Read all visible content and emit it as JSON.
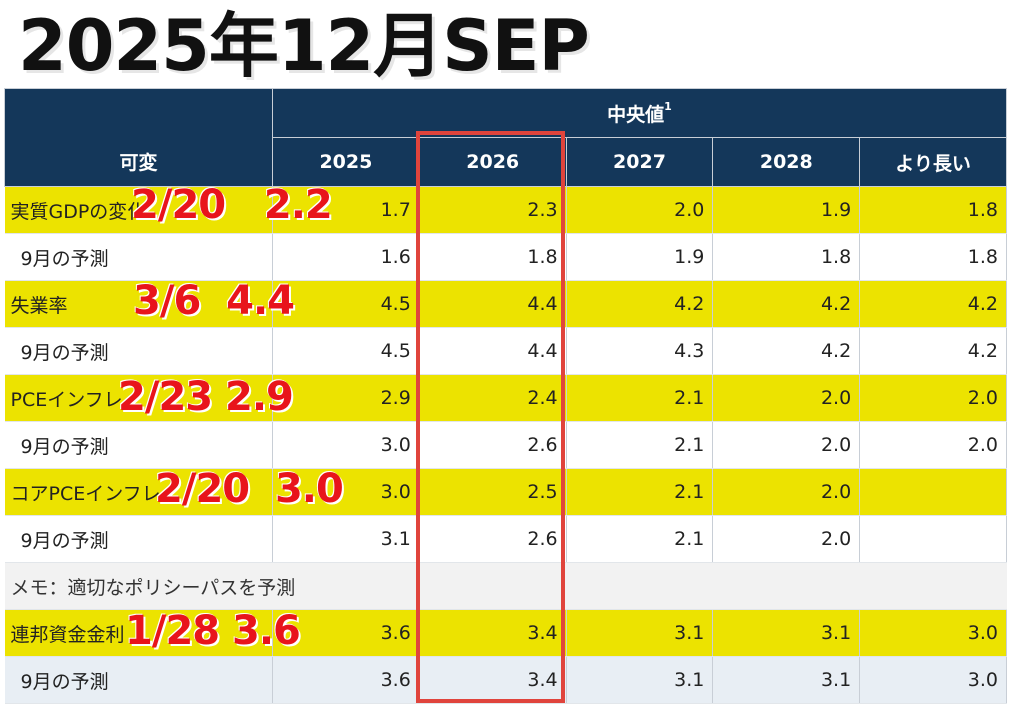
{
  "title": "2025年12月SEP",
  "table": {
    "group_header": "中央値",
    "group_footnote": "1",
    "label_header": "可変",
    "columns": [
      "2025",
      "2026",
      "2027",
      "2028",
      "より長い"
    ],
    "rows": [
      {
        "label": "実質GDPの変化",
        "values": [
          "1.7",
          "2.3",
          "2.0",
          "1.9",
          "1.8"
        ],
        "highlight": true
      },
      {
        "label": "9月の予測",
        "values": [
          "1.6",
          "1.8",
          "1.9",
          "1.8",
          "1.8"
        ],
        "highlight": false
      },
      {
        "label": "失業率",
        "values": [
          "4.5",
          "4.4",
          "4.2",
          "4.2",
          "4.2"
        ],
        "highlight": true
      },
      {
        "label": "9月の予測",
        "values": [
          "4.5",
          "4.4",
          "4.3",
          "4.2",
          "4.2"
        ],
        "highlight": false
      },
      {
        "label": "PCEインフレ",
        "values": [
          "2.9",
          "2.4",
          "2.1",
          "2.0",
          "2.0"
        ],
        "highlight": true
      },
      {
        "label": "9月の予測",
        "values": [
          "3.0",
          "2.6",
          "2.1",
          "2.0",
          "2.0"
        ],
        "highlight": false
      },
      {
        "label": "コアPCEインフレ",
        "values": [
          "3.0",
          "2.5",
          "2.1",
          "2.0",
          ""
        ],
        "highlight": true
      },
      {
        "label": "9月の予測",
        "values": [
          "3.1",
          "2.6",
          "2.1",
          "2.0",
          ""
        ],
        "highlight": false
      }
    ],
    "memo": "メモ：適切なポリシーパスを予測",
    "policy_rows": [
      {
        "label": "連邦資金金利",
        "values": [
          "3.6",
          "3.4",
          "3.1",
          "3.1",
          "3.0"
        ],
        "highlight": true
      },
      {
        "label": "9月の予測",
        "values": [
          "3.6",
          "3.4",
          "3.1",
          "3.1",
          "3.0"
        ],
        "highlight": false
      }
    ]
  },
  "annotations": [
    {
      "text": "2/20   2.2"
    },
    {
      "text": "3/6  4.4"
    },
    {
      "text": "2/23 2.9"
    },
    {
      "text": "2/20  3.0"
    },
    {
      "text": "1/28 3.6"
    }
  ],
  "colors": {
    "header_bg": "#14375a",
    "highlight": "#ece300",
    "annotation": "#e8141b",
    "box": "#e0443c"
  }
}
